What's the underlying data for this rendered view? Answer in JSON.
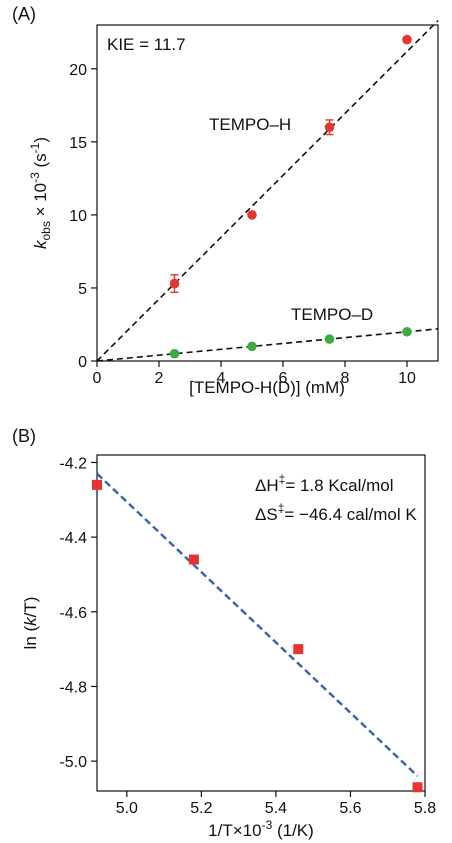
{
  "chart_data": [
    {
      "type": "scatter",
      "panel_label": "(A)",
      "xlabel": "[TEMPO-H(D)] (mM)",
      "ylabel_main": "k",
      "ylabel_sub": "obs",
      "ylabel_rest": " × 10",
      "ylabel_exp": "-3",
      "ylabel_unit_open": " (s",
      "ylabel_unit_exp": "-1",
      "ylabel_unit_close": ")",
      "xlim": [
        0,
        11
      ],
      "ylim": [
        0,
        23
      ],
      "x_ticks": [
        0,
        2,
        4,
        6,
        8,
        10
      ],
      "y_ticks": [
        0,
        5,
        10,
        15,
        20
      ],
      "annotation": "KIE = 11.7",
      "series": [
        {
          "name": "TEMPO–H",
          "color": "#e8332e",
          "points": [
            {
              "x": 2.5,
              "y": 5.3,
              "err": 0.6
            },
            {
              "x": 5.0,
              "y": 10.0
            },
            {
              "x": 7.5,
              "y": 16.0,
              "err": 0.5
            },
            {
              "x": 10.0,
              "y": 22.0
            }
          ],
          "fit": {
            "x": [
              0,
              11
            ],
            "y": [
              0,
              23.3
            ]
          }
        },
        {
          "name": "TEMPO–D",
          "color": "#3aad3e",
          "points": [
            {
              "x": 2.5,
              "y": 0.5
            },
            {
              "x": 5.0,
              "y": 1.0
            },
            {
              "x": 7.5,
              "y": 1.5
            },
            {
              "x": 10.0,
              "y": 2.0
            }
          ],
          "fit": {
            "x": [
              0,
              11
            ],
            "y": [
              0,
              2.2
            ]
          }
        }
      ]
    },
    {
      "type": "scatter",
      "panel_label": "(B)",
      "xlabel": "1/T×10",
      "xlabel_exp": "-3",
      "xlabel_rest": " (1/K)",
      "ylabel_pre": "ln (",
      "ylabel_italic": "k",
      "ylabel_post": "/T)",
      "xlim": [
        4.92,
        5.8
      ],
      "ylim": [
        -5.08,
        -4.18
      ],
      "x_ticks": [
        5.0,
        5.2,
        5.4,
        5.6,
        5.8
      ],
      "y_ticks": [
        -5.0,
        -4.8,
        -4.6,
        -4.4,
        -4.2
      ],
      "annotation_dH_label": "ΔH",
      "annotation_dH_value": "= 1.8 Kcal/mol",
      "annotation_dS_label": "ΔS",
      "annotation_dS_value": "= −46.4 cal/mol K",
      "annotation_dagger": "‡",
      "series": [
        {
          "color": "#e8332e",
          "points": [
            {
              "x": 4.92,
              "y": -4.26
            },
            {
              "x": 5.18,
              "y": -4.46
            },
            {
              "x": 5.46,
              "y": -4.7
            },
            {
              "x": 5.78,
              "y": -5.07
            }
          ],
          "fit": {
            "x": [
              4.92,
              5.78
            ],
            "y": [
              -4.23,
              -5.04
            ],
            "color": "#3b5fb0"
          }
        }
      ]
    }
  ]
}
